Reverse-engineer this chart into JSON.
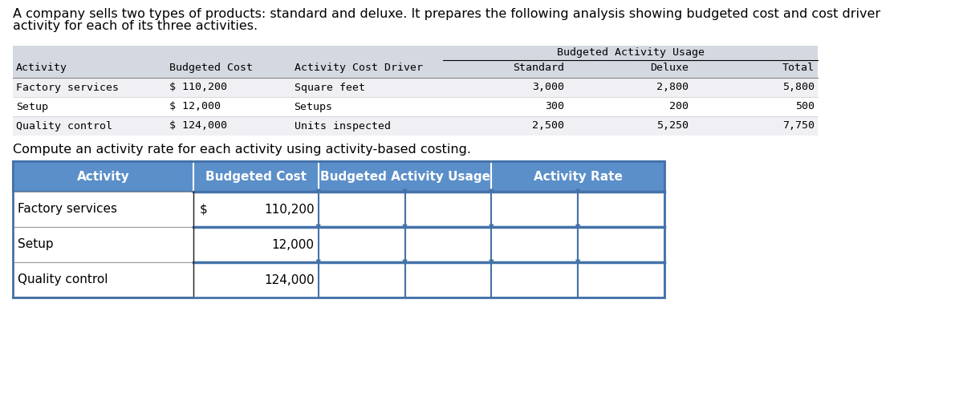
{
  "intro_text_line1": "A company sells two types of products: standard and deluxe. It prepares the following analysis showing budgeted cost and cost driver",
  "intro_text_line2": "activity for each of its three activities.",
  "top_table": {
    "bau_header": "Budgeted Activity Usage",
    "col_headers": [
      "Activity",
      "Budgeted Cost",
      "Activity Cost Driver",
      "Standard",
      "Deluxe",
      "Total"
    ],
    "rows": [
      [
        "Factory services",
        "$ 110,200",
        "Square feet",
        "3,000",
        "2,800",
        "5,800"
      ],
      [
        "Setup",
        "$ 12,000",
        "Setups",
        "300",
        "200",
        "500"
      ],
      [
        "Quality control",
        "$ 124,000",
        "Units inspected",
        "2,500",
        "5,250",
        "7,750"
      ]
    ],
    "header_bg": "#d4d8e0",
    "row_bg_alt": "#f0f0f4",
    "row_bg_plain": "#ffffff"
  },
  "compute_text": "Compute an activity rate for each activity using activity-based costing.",
  "bottom_table": {
    "col_headers": [
      "Activity",
      "Budgeted Cost",
      "Budgeted Activity Usage",
      "Activity Rate"
    ],
    "rows": [
      [
        "Factory services",
        "110,200",
        true
      ],
      [
        "Setup",
        "12,000",
        false
      ],
      [
        "Quality control",
        "124,000",
        false
      ]
    ],
    "header_bg": "#5b8fc9",
    "header_text": "#ffffff",
    "border_color": "#4472a8",
    "row_divider": "#4472a8",
    "cell_bg": "#ffffff"
  },
  "bg_color": "#ffffff",
  "font_size_intro": 11.5,
  "font_size_top_header": 9.5,
  "font_size_top_data": 9.5,
  "font_size_bottom_header": 11,
  "font_size_bottom_data": 11
}
